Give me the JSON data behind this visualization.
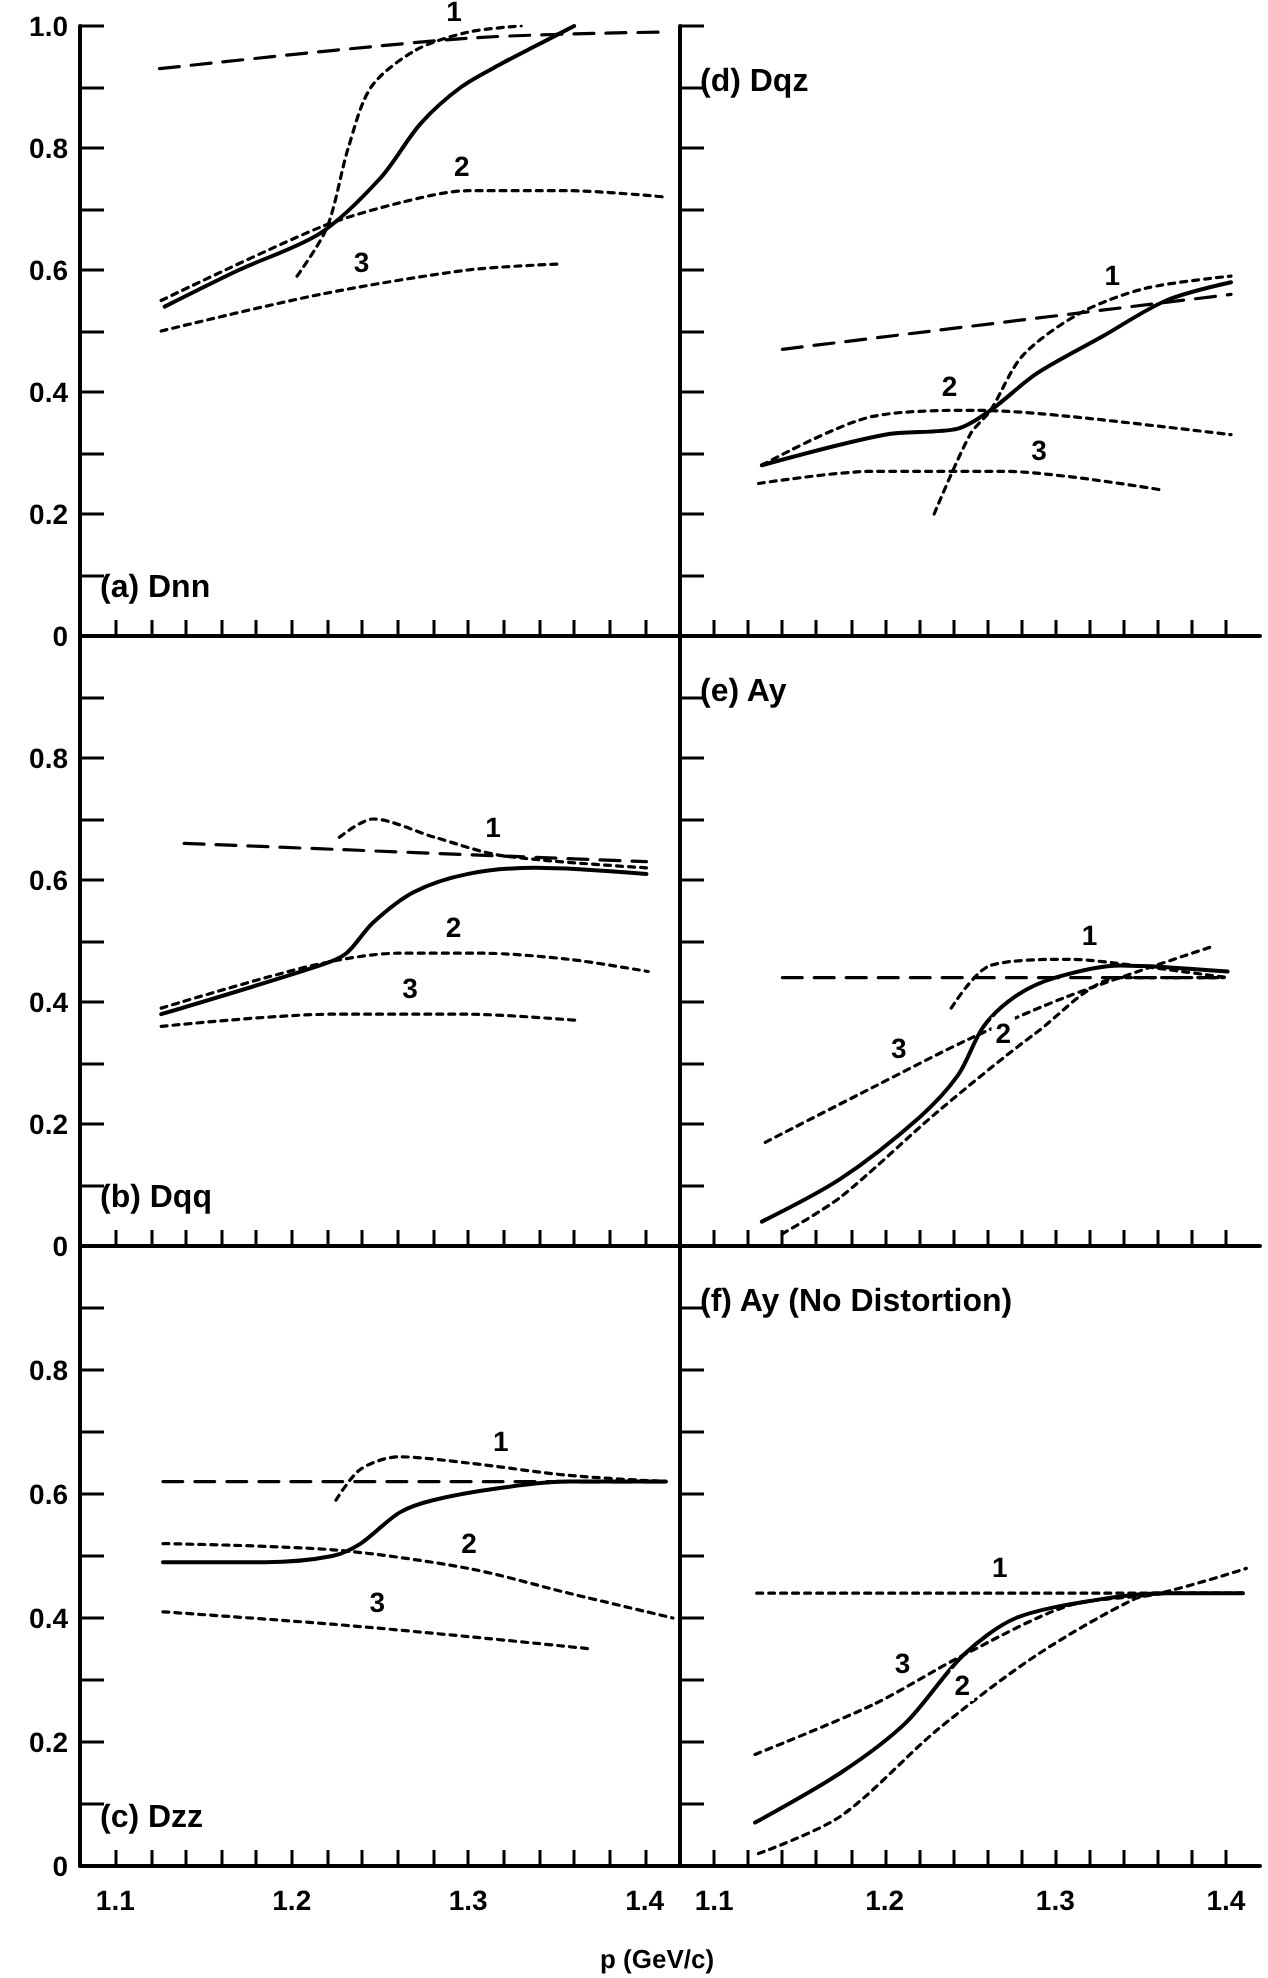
{
  "chart_data": [
    {
      "type": "line",
      "title": "(a) Dnn",
      "tick_labels": "y",
      "xlim": [
        1.08,
        1.42
      ],
      "ylim": [
        0,
        1
      ],
      "xticks": [
        {
          "value": 1.08,
          "label": null
        },
        1.1,
        {
          "value": 1.12,
          "label": null
        },
        {
          "value": 1.14,
          "label": null
        },
        {
          "value": 1.16,
          "label": null
        },
        {
          "value": 1.18,
          "label": null
        },
        1.2,
        {
          "value": 1.22,
          "label": null
        },
        {
          "value": 1.24,
          "label": null
        },
        {
          "value": 1.26,
          "label": null
        },
        {
          "value": 1.28,
          "label": null
        },
        1.3,
        {
          "value": 1.32,
          "label": null
        },
        {
          "value": 1.34,
          "label": null
        },
        {
          "value": 1.36,
          "label": null
        },
        {
          "value": 1.38,
          "label": null
        },
        1.4
      ],
      "yticks": [
        0,
        {
          "value": 0.1,
          "label": null
        },
        0.2,
        {
          "value": 0.3,
          "label": null
        },
        0.4,
        {
          "value": 0.5,
          "label": null
        },
        0.6,
        {
          "value": 0.7,
          "label": null
        },
        0.8,
        {
          "value": 0.9,
          "label": null
        },
        {
          "value": 1,
          "label": "1.0"
        }
      ],
      "series": [
        {
          "color": "#000000",
          "line_style": "solid",
          "x": [
            1.128,
            1.17,
            1.216,
            1.25,
            1.273,
            1.296,
            1.32,
            1.34,
            1.36
          ],
          "values": [
            0.54,
            0.6,
            0.66,
            0.75,
            0.84,
            0.9,
            0.94,
            0.97,
            1.0
          ]
        },
        {
          "color": "#000000",
          "line_style": "dashed",
          "x": [
            1.125,
            1.3,
            1.41
          ],
          "values": [
            0.93,
            0.98,
            0.99
          ]
        },
        {
          "name": "1",
          "color": "#000000",
          "line_style": "dotted",
          "x": [
            1.203,
            1.22,
            1.232,
            1.245,
            1.27,
            1.3,
            1.33
          ],
          "values": [
            0.59,
            0.67,
            0.8,
            0.9,
            0.96,
            0.99,
            1.0
          ]
        },
        {
          "name": "2",
          "color": "#000000",
          "line_style": "dotted",
          "x": [
            1.126,
            1.216,
            1.261,
            1.3,
            1.357,
            1.41
          ],
          "values": [
            0.55,
            0.67,
            0.71,
            0.73,
            0.73,
            0.72
          ]
        },
        {
          "name": "3",
          "color": "#000000",
          "line_style": "dotted",
          "x": [
            1.126,
            1.216,
            1.3,
            1.353
          ],
          "values": [
            0.5,
            0.56,
            0.6,
            0.61
          ]
        }
      ]
    },
    {
      "type": "line",
      "title": "(d) Dqz",
      "tick_labels": false,
      "xlim": [
        1.08,
        1.42
      ],
      "ylim": [
        0,
        1
      ],
      "xticks": [
        {
          "value": 1.08,
          "label": null
        },
        1.1,
        {
          "value": 1.12,
          "label": null
        },
        {
          "value": 1.14,
          "label": null
        },
        {
          "value": 1.16,
          "label": null
        },
        {
          "value": 1.18,
          "label": null
        },
        1.2,
        {
          "value": 1.22,
          "label": null
        },
        {
          "value": 1.24,
          "label": null
        },
        {
          "value": 1.26,
          "label": null
        },
        {
          "value": 1.28,
          "label": null
        },
        1.3,
        {
          "value": 1.32,
          "label": null
        },
        {
          "value": 1.34,
          "label": null
        },
        {
          "value": 1.36,
          "label": null
        },
        {
          "value": 1.38,
          "label": null
        },
        1.4
      ],
      "yticks": [
        0,
        0.1,
        0.2,
        0.3,
        0.4,
        0.5,
        0.6,
        0.7,
        0.8,
        0.9,
        1
      ],
      "series": [
        {
          "color": "#000000",
          "line_style": "solid",
          "x": [
            1.128,
            1.2,
            1.243,
            1.262,
            1.289,
            1.327,
            1.365,
            1.403
          ],
          "values": [
            0.28,
            0.33,
            0.34,
            0.37,
            0.43,
            0.49,
            0.55,
            0.58
          ]
        },
        {
          "color": "#000000",
          "line_style": "dashed",
          "x": [
            1.14,
            1.403
          ],
          "values": [
            0.47,
            0.56
          ]
        },
        {
          "name": "1",
          "color": "#000000",
          "line_style": "dotted",
          "x": [
            1.229,
            1.25,
            1.262,
            1.281,
            1.315,
            1.353,
            1.403
          ],
          "values": [
            0.2,
            0.33,
            0.37,
            0.46,
            0.53,
            0.57,
            0.59
          ]
        },
        {
          "name": "2",
          "color": "#000000",
          "line_style": "dotted",
          "x": [
            1.128,
            1.193,
            1.254,
            1.308,
            1.403
          ],
          "values": [
            0.28,
            0.36,
            0.37,
            0.36,
            0.33
          ]
        },
        {
          "name": "3",
          "color": "#000000",
          "line_style": "dotted",
          "x": [
            1.126,
            1.193,
            1.269,
            1.361
          ],
          "values": [
            0.25,
            0.27,
            0.27,
            0.24
          ]
        }
      ]
    },
    {
      "type": "line",
      "title": "(b) Dqq",
      "tick_labels": "y",
      "xlim": [
        1.08,
        1.42
      ],
      "ylim": [
        0,
        1
      ],
      "xticks": [
        {
          "value": 1.08,
          "label": null
        },
        1.1,
        {
          "value": 1.12,
          "label": null
        },
        {
          "value": 1.14,
          "label": null
        },
        {
          "value": 1.16,
          "label": null
        },
        {
          "value": 1.18,
          "label": null
        },
        1.2,
        {
          "value": 1.22,
          "label": null
        },
        {
          "value": 1.24,
          "label": null
        },
        {
          "value": 1.26,
          "label": null
        },
        {
          "value": 1.28,
          "label": null
        },
        1.3,
        {
          "value": 1.32,
          "label": null
        },
        {
          "value": 1.34,
          "label": null
        },
        {
          "value": 1.36,
          "label": null
        },
        {
          "value": 1.38,
          "label": null
        },
        1.4
      ],
      "yticks": [
        0,
        {
          "value": 0.1,
          "label": null
        },
        0.2,
        {
          "value": 0.3,
          "label": null
        },
        0.4,
        {
          "value": 0.5,
          "label": null
        },
        0.6,
        {
          "value": 0.7,
          "label": null
        },
        0.8,
        {
          "value": 0.9,
          "label": null
        },
        {
          "value": 1,
          "label": null
        }
      ],
      "series": [
        {
          "color": "#000000",
          "line_style": "solid",
          "x": [
            1.126,
            1.216,
            1.231,
            1.246,
            1.269,
            1.3,
            1.338,
            1.401
          ],
          "values": [
            0.38,
            0.46,
            0.48,
            0.53,
            0.58,
            0.61,
            0.62,
            0.61
          ]
        },
        {
          "color": "#000000",
          "line_style": "dashed",
          "x": [
            1.139,
            1.401
          ],
          "values": [
            0.66,
            0.63
          ]
        },
        {
          "name": "1",
          "color": "#000000",
          "line_style": "dotted",
          "x": [
            1.227,
            1.246,
            1.281,
            1.319,
            1.401
          ],
          "values": [
            0.67,
            0.7,
            0.67,
            0.64,
            0.62
          ]
        },
        {
          "name": "2",
          "color": "#000000",
          "line_style": "dotted",
          "x": [
            1.126,
            1.212,
            1.261,
            1.307,
            1.357,
            1.402
          ],
          "values": [
            0.39,
            0.46,
            0.48,
            0.48,
            0.47,
            0.45
          ]
        },
        {
          "name": "3",
          "color": "#000000",
          "line_style": "dotted",
          "x": [
            1.126,
            1.223,
            1.3,
            1.361
          ],
          "values": [
            0.36,
            0.38,
            0.38,
            0.37
          ]
        }
      ]
    },
    {
      "type": "line",
      "title": "(e) Ay",
      "tick_labels": false,
      "xlim": [
        1.08,
        1.42
      ],
      "ylim": [
        0,
        1
      ],
      "xticks": [
        {
          "value": 1.08,
          "label": null
        },
        1.1,
        {
          "value": 1.12,
          "label": null
        },
        {
          "value": 1.14,
          "label": null
        },
        {
          "value": 1.16,
          "label": null
        },
        {
          "value": 1.18,
          "label": null
        },
        1.2,
        {
          "value": 1.22,
          "label": null
        },
        {
          "value": 1.24,
          "label": null
        },
        {
          "value": 1.26,
          "label": null
        },
        {
          "value": 1.28,
          "label": null
        },
        1.3,
        {
          "value": 1.32,
          "label": null
        },
        {
          "value": 1.34,
          "label": null
        },
        {
          "value": 1.36,
          "label": null
        },
        {
          "value": 1.38,
          "label": null
        },
        1.4
      ],
      "yticks": [
        0,
        0.1,
        0.2,
        0.3,
        0.4,
        0.5,
        0.6,
        0.7,
        0.8,
        0.9,
        1
      ],
      "series": [
        {
          "color": "#000000",
          "line_style": "solid",
          "x": [
            1.128,
            1.174,
            1.22,
            1.243,
            1.258,
            1.277,
            1.3,
            1.338,
            1.401
          ],
          "values": [
            0.04,
            0.11,
            0.21,
            0.28,
            0.36,
            0.41,
            0.44,
            0.46,
            0.45
          ]
        },
        {
          "color": "#000000",
          "line_style": "dashed",
          "x": [
            1.14,
            1.401
          ],
          "values": [
            0.44,
            0.44
          ]
        },
        {
          "name": "1",
          "color": "#000000",
          "line_style": "dotted",
          "x": [
            1.239,
            1.262,
            1.308,
            1.346,
            1.401
          ],
          "values": [
            0.39,
            0.46,
            0.47,
            0.46,
            0.44
          ]
        },
        {
          "name": "2",
          "color": "#000000",
          "line_style": "dotted",
          "x": [
            1.14,
            1.174,
            1.231,
            1.289,
            1.338,
            1.399
          ],
          "values": [
            0.02,
            0.08,
            0.22,
            0.35,
            0.44,
            0.44
          ]
        },
        {
          "name": "3",
          "color": "#000000",
          "line_style": "dotted",
          "x": [
            1.13,
            1.193,
            1.25,
            1.308,
            1.391
          ],
          "values": [
            0.17,
            0.26,
            0.34,
            0.41,
            0.49
          ]
        }
      ]
    },
    {
      "type": "line",
      "title": "(c) Dzz",
      "xlabel": "p (GeV/c)",
      "xlim": [
        1.08,
        1.42
      ],
      "ylim": [
        0,
        1
      ],
      "xticks": [
        {
          "value": 1.08,
          "label": null
        },
        1.1,
        {
          "value": 1.12,
          "label": null
        },
        {
          "value": 1.14,
          "label": null
        },
        {
          "value": 1.16,
          "label": null
        },
        {
          "value": 1.18,
          "label": null
        },
        1.2,
        {
          "value": 1.22,
          "label": null
        },
        {
          "value": 1.24,
          "label": null
        },
        {
          "value": 1.26,
          "label": null
        },
        {
          "value": 1.28,
          "label": null
        },
        1.3,
        {
          "value": 1.32,
          "label": null
        },
        {
          "value": 1.34,
          "label": null
        },
        {
          "value": 1.36,
          "label": null
        },
        {
          "value": 1.38,
          "label": null
        },
        1.4
      ],
      "yticks": [
        0,
        {
          "value": 0.1,
          "label": null
        },
        0.2,
        {
          "value": 0.3,
          "label": null
        },
        0.4,
        {
          "value": 0.5,
          "label": null
        },
        0.6,
        {
          "value": 0.7,
          "label": null
        },
        0.8,
        {
          "value": 0.9,
          "label": null
        },
        {
          "value": 1,
          "label": null
        }
      ],
      "series": [
        {
          "color": "#000000",
          "line_style": "solid",
          "x": [
            1.127,
            1.185,
            1.223,
            1.239,
            1.261,
            1.28,
            1.319,
            1.357,
            1.412
          ],
          "values": [
            0.49,
            0.49,
            0.5,
            0.52,
            0.57,
            0.59,
            0.61,
            0.62,
            0.62
          ]
        },
        {
          "color": "#000000",
          "line_style": "dashed",
          "x": [
            1.127,
            1.412
          ],
          "values": [
            0.62,
            0.62
          ]
        },
        {
          "name": "1",
          "color": "#000000",
          "line_style": "dotted",
          "x": [
            1.225,
            1.239,
            1.261,
            1.3,
            1.357,
            1.412
          ],
          "values": [
            0.59,
            0.64,
            0.66,
            0.65,
            0.63,
            0.62
          ]
        },
        {
          "name": "2",
          "color": "#000000",
          "line_style": "dotted",
          "x": [
            1.127,
            1.223,
            1.3,
            1.357,
            1.416
          ],
          "values": [
            0.52,
            0.51,
            0.48,
            0.44,
            0.4
          ]
        },
        {
          "name": "3",
          "color": "#000000",
          "line_style": "dotted",
          "x": [
            1.127,
            1.223,
            1.3,
            1.37
          ],
          "values": [
            0.41,
            0.39,
            0.37,
            0.35
          ]
        }
      ]
    },
    {
      "type": "line",
      "title": "(f) Ay (No Distortion)",
      "tick_labels": "x",
      "xlim": [
        1.08,
        1.42
      ],
      "ylim": [
        0,
        1
      ],
      "xticks": [
        {
          "value": 1.08,
          "label": null
        },
        1.1,
        {
          "value": 1.12,
          "label": null
        },
        {
          "value": 1.14,
          "label": null
        },
        {
          "value": 1.16,
          "label": null
        },
        {
          "value": 1.18,
          "label": null
        },
        1.2,
        {
          "value": 1.22,
          "label": null
        },
        {
          "value": 1.24,
          "label": null
        },
        {
          "value": 1.26,
          "label": null
        },
        {
          "value": 1.28,
          "label": null
        },
        1.3,
        {
          "value": 1.32,
          "label": null
        },
        {
          "value": 1.34,
          "label": null
        },
        {
          "value": 1.36,
          "label": null
        },
        {
          "value": 1.38,
          "label": null
        },
        1.4
      ],
      "yticks": [
        0,
        0.1,
        0.2,
        0.3,
        0.4,
        0.5,
        0.6,
        0.7,
        0.8,
        0.9,
        1
      ],
      "series": [
        {
          "color": "#000000",
          "line_style": "solid",
          "x": [
            1.124,
            1.174,
            1.212,
            1.246,
            1.277,
            1.326,
            1.364,
            1.41
          ],
          "values": [
            0.07,
            0.15,
            0.23,
            0.34,
            0.4,
            0.43,
            0.44,
            0.44
          ]
        },
        {
          "name": "1",
          "color": "#000000",
          "line_style": "dotted",
          "x": [
            1.125,
            1.41
          ],
          "values": [
            0.44,
            0.44
          ]
        },
        {
          "name": "2",
          "color": "#000000",
          "line_style": "dotted",
          "x": [
            1.126,
            1.174,
            1.231,
            1.289,
            1.346,
            1.365
          ],
          "values": [
            0.02,
            0.08,
            0.22,
            0.34,
            0.43,
            0.44
          ]
        },
        {
          "name": "3",
          "color": "#000000",
          "line_style": "dotted",
          "x": [
            1.124,
            1.193,
            1.246,
            1.308,
            1.361,
            1.412
          ],
          "values": [
            0.18,
            0.26,
            0.34,
            0.42,
            0.44,
            0.48
          ]
        }
      ]
    }
  ]
}
